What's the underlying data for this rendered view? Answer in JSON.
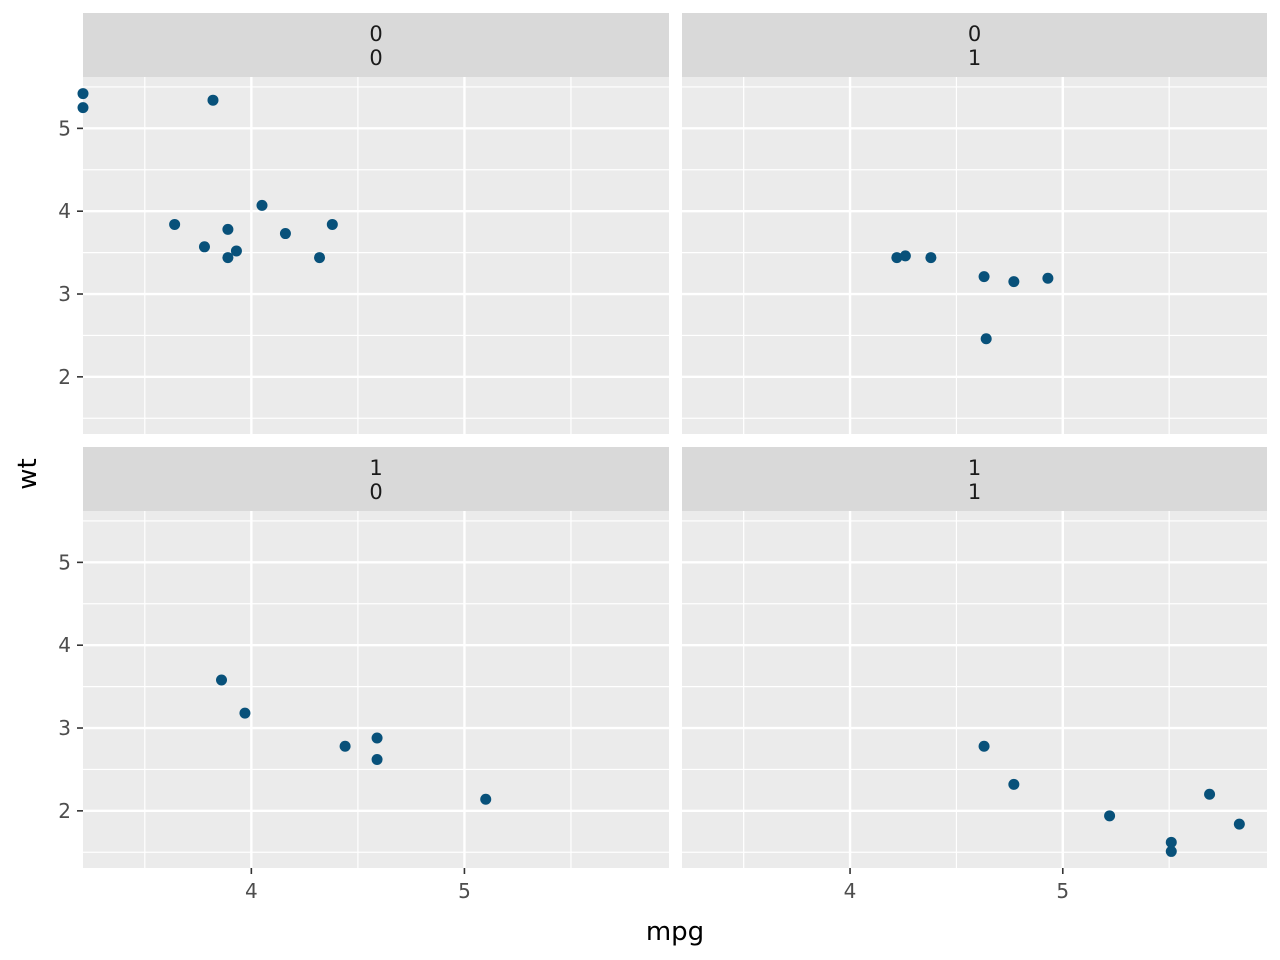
{
  "chart_data": {
    "type": "scatter",
    "xlabel": "mpg",
    "ylabel": "wt",
    "x_ticks": [
      4,
      5
    ],
    "y_ticks": [
      2,
      3,
      4,
      5
    ],
    "xlim": [
      3.21,
      5.96
    ],
    "ylim": [
      1.31,
      5.62
    ],
    "grid": true,
    "point_color": "#08517a",
    "panel_bg": "#ebebeb",
    "strip_bg": "#d9d9d9",
    "facets": [
      {
        "strip": [
          "0",
          "0"
        ],
        "points": [
          {
            "x": 3.21,
            "y": 5.42
          },
          {
            "x": 3.21,
            "y": 5.25
          },
          {
            "x": 3.82,
            "y": 5.34
          },
          {
            "x": 3.64,
            "y": 3.84
          },
          {
            "x": 3.78,
            "y": 3.57
          },
          {
            "x": 3.89,
            "y": 3.44
          },
          {
            "x": 3.89,
            "y": 3.78
          },
          {
            "x": 3.93,
            "y": 3.52
          },
          {
            "x": 4.05,
            "y": 4.07
          },
          {
            "x": 4.16,
            "y": 3.73
          },
          {
            "x": 4.32,
            "y": 3.44
          },
          {
            "x": 4.38,
            "y": 3.84
          }
        ]
      },
      {
        "strip": [
          "0",
          "1"
        ],
        "points": [
          {
            "x": 4.22,
            "y": 3.44
          },
          {
            "x": 4.26,
            "y": 3.46
          },
          {
            "x": 4.38,
            "y": 3.44
          },
          {
            "x": 4.63,
            "y": 3.21
          },
          {
            "x": 4.77,
            "y": 3.15
          },
          {
            "x": 4.93,
            "y": 3.19
          },
          {
            "x": 4.64,
            "y": 2.46
          }
        ]
      },
      {
        "strip": [
          "1",
          "0"
        ],
        "points": [
          {
            "x": 3.86,
            "y": 3.58
          },
          {
            "x": 3.97,
            "y": 3.18
          },
          {
            "x": 4.44,
            "y": 2.78
          },
          {
            "x": 4.59,
            "y": 2.88
          },
          {
            "x": 4.59,
            "y": 2.62
          },
          {
            "x": 5.1,
            "y": 2.14
          }
        ]
      },
      {
        "strip": [
          "1",
          "1"
        ],
        "points": [
          {
            "x": 4.63,
            "y": 2.78
          },
          {
            "x": 4.77,
            "y": 2.32
          },
          {
            "x": 5.22,
            "y": 1.94
          },
          {
            "x": 5.51,
            "y": 1.62
          },
          {
            "x": 5.51,
            "y": 1.51
          },
          {
            "x": 5.69,
            "y": 2.2
          },
          {
            "x": 5.83,
            "y": 1.84
          }
        ]
      }
    ]
  }
}
